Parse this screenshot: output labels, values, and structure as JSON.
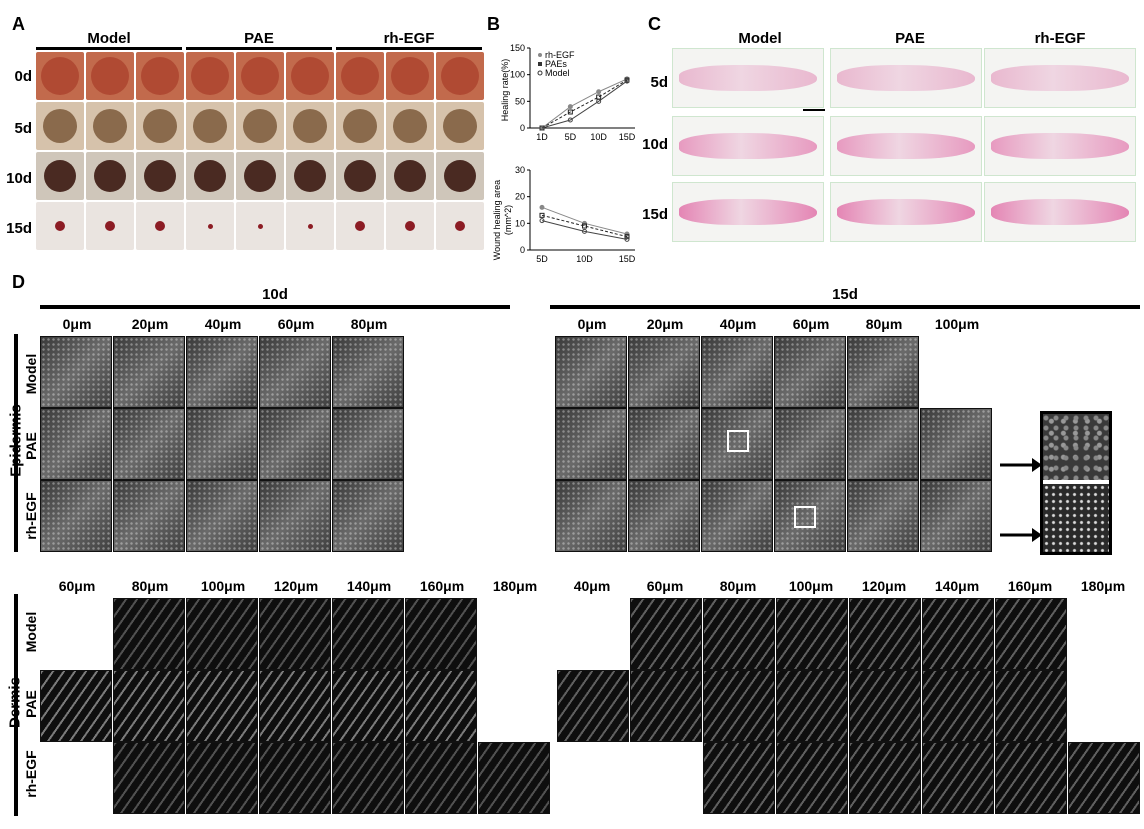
{
  "panelA": {
    "label": "A",
    "groups": [
      "Model",
      "PAE",
      "rh-EGF"
    ],
    "rows": [
      "0d",
      "5d",
      "10d",
      "15d"
    ]
  },
  "panelB": {
    "label": "B",
    "legend": [
      "rh-EGF",
      "PAEs",
      "Model"
    ]
  },
  "chart_data": [
    {
      "type": "line",
      "ylabel": "Healing rate(%)",
      "categories": [
        "1D",
        "5D",
        "10D",
        "15D"
      ],
      "ylim": [
        0,
        150
      ],
      "yticks": [
        "0",
        "50",
        "100",
        "150"
      ],
      "series": [
        {
          "name": "rh-EGF",
          "values": [
            0,
            40,
            68,
            92
          ]
        },
        {
          "name": "PAEs",
          "values": [
            0,
            30,
            58,
            90
          ]
        },
        {
          "name": "Model",
          "values": [
            0,
            15,
            50,
            88
          ]
        }
      ]
    },
    {
      "type": "line",
      "ylabel": "Wound healing area\n(mm^2)",
      "ylabel_line1": "Wound healing area",
      "ylabel_line2": "(mm^2)",
      "categories": [
        "5D",
        "10D",
        "15D"
      ],
      "ylim": [
        0,
        30
      ],
      "yticks": [
        "0",
        "10",
        "20",
        "30"
      ],
      "series": [
        {
          "name": "rh-EGF",
          "values": [
            16,
            10,
            6
          ]
        },
        {
          "name": "PAEs",
          "values": [
            13,
            9,
            5
          ]
        },
        {
          "name": "Model",
          "values": [
            11,
            7,
            4
          ]
        }
      ]
    }
  ],
  "panelC": {
    "label": "C",
    "groups": [
      "Model",
      "PAE",
      "rh-EGF"
    ],
    "rows": [
      "5d",
      "10d",
      "15d"
    ],
    "scale": "1mm"
  },
  "panelD": {
    "label": "D",
    "time10": "10d",
    "time15": "15d",
    "epi_depths_10": [
      "0μm",
      "20μm",
      "40μm",
      "60μm",
      "80μm"
    ],
    "epi_depths_15": [
      "0μm",
      "20μm",
      "40μm",
      "60μm",
      "80μm",
      "100μm"
    ],
    "der_depths_10": [
      "60μm",
      "80μm",
      "100μm",
      "120μm",
      "140μm",
      "160μm",
      "180μm"
    ],
    "der_depths_15": [
      "40μm",
      "60μm",
      "80μm",
      "100μm",
      "120μm",
      "140μm",
      "160μm",
      "180μm"
    ],
    "rows": [
      "Model",
      "PAE",
      "rh-EGF"
    ],
    "section_epi": "Epidermis",
    "section_der": "Dermis"
  }
}
